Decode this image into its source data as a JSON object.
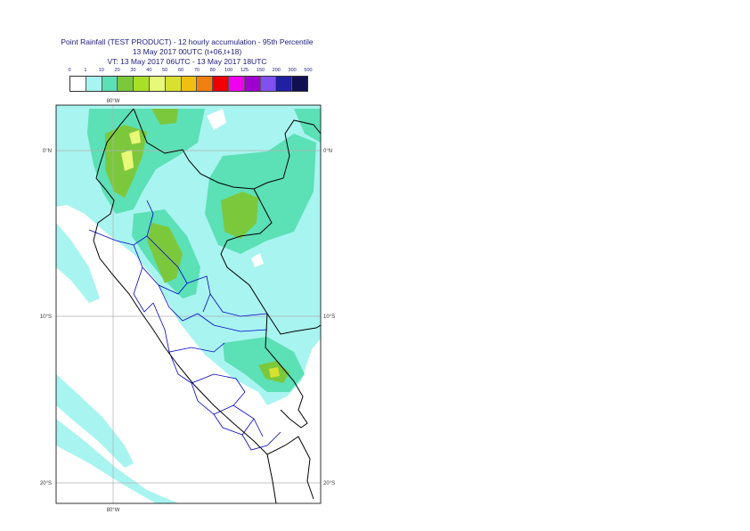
{
  "title": {
    "line1": "Point Rainfall (TEST PRODUCT) - 12 hourly accumulation - 95th Percentile",
    "line2": "13 May 2017 00UTC (t+06,t+18)",
    "line3": "VT: 13 May 2017 06UTC - 13 May 2017 18UTC"
  },
  "legend": {
    "ticks": [
      "0",
      "1",
      "10",
      "20",
      "30",
      "40",
      "50",
      "60",
      "70",
      "80",
      "100",
      "125",
      "150",
      "200",
      "300",
      "500"
    ],
    "colors": [
      "#ffffff",
      "#a8f4f0",
      "#5ce0b6",
      "#7cc83c",
      "#a8e028",
      "#e8f878",
      "#d8e030",
      "#f0c010",
      "#f08010",
      "#f00000",
      "#f000f0",
      "#a000d0",
      "#8050f0",
      "#2020a0",
      "#101050"
    ]
  },
  "axes": {
    "lon_top": "80°W",
    "lon_bottom": "80°W",
    "lat_labels_left": [
      "0°N",
      "10°S",
      "20°S"
    ],
    "lat_labels_right": [
      "0°N",
      "10°S",
      "20°S"
    ]
  },
  "colors": {
    "coast": "#000000",
    "borders": "#0000cc",
    "grid": "#b0b0b0",
    "label_text": "#1a1a80"
  }
}
